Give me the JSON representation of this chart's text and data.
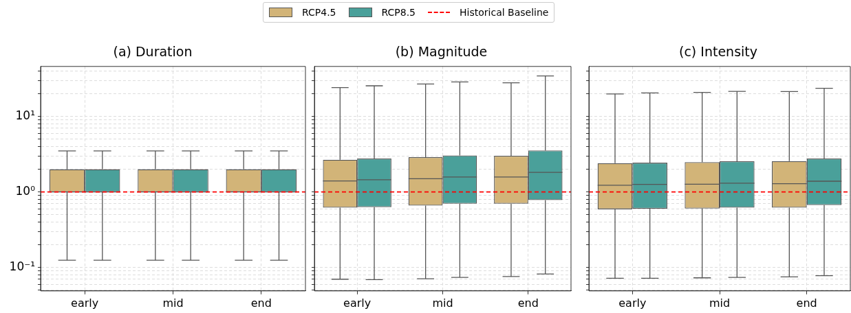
{
  "chart_data": [
    {
      "type": "box",
      "title": "(a) Duration",
      "categories": [
        "early",
        "mid",
        "end"
      ],
      "log": "y",
      "grid": true,
      "legend": "top",
      "ylim": [
        0.049,
        46
      ],
      "yticks": [
        {
          "value": 0.05,
          "label": null
        },
        {
          "value": 0.06,
          "label": null
        },
        {
          "value": 0.07,
          "label": null
        },
        {
          "value": 0.08,
          "label": null
        },
        {
          "value": 0.09,
          "label": null
        },
        {
          "value": 0.1,
          "label": "10⁻¹"
        },
        {
          "value": 0.2,
          "label": null
        },
        {
          "value": 0.3,
          "label": null
        },
        {
          "value": 0.4,
          "label": null
        },
        {
          "value": 0.5,
          "label": null
        },
        {
          "value": 0.6,
          "label": null
        },
        {
          "value": 0.7,
          "label": null
        },
        {
          "value": 0.8,
          "label": null
        },
        {
          "value": 0.9,
          "label": null
        },
        {
          "value": 1,
          "label": "10⁰"
        },
        {
          "value": 2,
          "label": null
        },
        {
          "value": 3,
          "label": null
        },
        {
          "value": 4,
          "label": null
        },
        {
          "value": 5,
          "label": null
        },
        {
          "value": 6,
          "label": null
        },
        {
          "value": 7,
          "label": null
        },
        {
          "value": 8,
          "label": null
        },
        {
          "value": 9,
          "label": null
        },
        {
          "value": 10,
          "label": "10¹"
        },
        {
          "value": 20,
          "label": null
        },
        {
          "value": 30,
          "label": null
        },
        {
          "value": 40,
          "label": null
        }
      ],
      "ref_lines": [
        {
          "axis": "y",
          "value": 1,
          "label": "Historical Baseline",
          "color": "#ff0000",
          "line_style": "dashed"
        }
      ],
      "series": [
        {
          "name": "RCP4.5",
          "color": "#d2b478",
          "boxes": [
            {
              "low": 0.125,
              "q1": 1,
              "median": 1,
              "q3": 2,
              "high": 3.5
            },
            {
              "low": 0.125,
              "q1": 1,
              "median": 1,
              "q3": 2,
              "high": 3.5
            },
            {
              "low": 0.125,
              "q1": 1,
              "median": 1,
              "q3": 2,
              "high": 3.5
            }
          ]
        },
        {
          "name": "RCP8.5",
          "color": "#4aa09a",
          "boxes": [
            {
              "low": 0.125,
              "q1": 1,
              "median": 1,
              "q3": 2,
              "high": 3.5
            },
            {
              "low": 0.125,
              "q1": 1,
              "median": 1,
              "q3": 2,
              "high": 3.5
            },
            {
              "low": 0.125,
              "q1": 1,
              "median": 1,
              "q3": 2,
              "high": 3.5
            }
          ]
        }
      ]
    },
    {
      "type": "box",
      "title": "(b) Magnitude",
      "categories": [
        "early",
        "mid",
        "end"
      ],
      "log": "y",
      "grid": true,
      "tick_labels": "x",
      "ylim": [
        0.049,
        46
      ],
      "yticks": [
        0.05,
        0.06,
        0.07,
        0.08,
        0.09,
        0.1,
        0.2,
        0.3,
        0.4,
        0.5,
        0.6,
        0.7,
        0.8,
        0.9,
        1,
        2,
        3,
        4,
        5,
        6,
        7,
        8,
        9,
        10,
        20,
        30,
        40
      ],
      "ref_lines": [
        {
          "axis": "y",
          "value": 1,
          "color": "#ff0000",
          "line_style": "dashed"
        }
      ],
      "series": [
        {
          "color": "#d2b478",
          "boxes": [
            {
              "low": 0.07,
              "q1": 0.62,
              "median": 1.4,
              "q3": 2.67,
              "high": 24.1
            },
            {
              "low": 0.071,
              "q1": 0.66,
              "median": 1.5,
              "q3": 2.89,
              "high": 26.9
            },
            {
              "low": 0.076,
              "q1": 0.7,
              "median": 1.58,
              "q3": 3.01,
              "high": 27.9
            }
          ]
        },
        {
          "color": "#4aa09a",
          "boxes": [
            {
              "low": 0.069,
              "q1": 0.63,
              "median": 1.45,
              "q3": 2.77,
              "high": 25.5
            },
            {
              "low": 0.074,
              "q1": 0.7,
              "median": 1.58,
              "q3": 3.05,
              "high": 28.7
            },
            {
              "low": 0.082,
              "q1": 0.78,
              "median": 1.82,
              "q3": 3.54,
              "high": 34.4
            }
          ]
        }
      ]
    },
    {
      "type": "box",
      "title": "(c) Intensity",
      "categories": [
        "early",
        "mid",
        "end"
      ],
      "log": "y",
      "grid": true,
      "tick_labels": "x",
      "ylim": [
        0.049,
        46
      ],
      "yticks": [
        0.05,
        0.06,
        0.07,
        0.08,
        0.09,
        0.1,
        0.2,
        0.3,
        0.4,
        0.5,
        0.6,
        0.7,
        0.8,
        0.9,
        1,
        2,
        3,
        4,
        5,
        6,
        7,
        8,
        9,
        10,
        20,
        30,
        40
      ],
      "ref_lines": [
        {
          "axis": "y",
          "value": 1,
          "color": "#ff0000",
          "line_style": "dashed"
        }
      ],
      "series": [
        {
          "color": "#d2b478",
          "boxes": [
            {
              "low": 0.072,
              "q1": 0.59,
              "median": 1.23,
              "q3": 2.41,
              "high": 19.9
            },
            {
              "low": 0.073,
              "q1": 0.605,
              "median": 1.27,
              "q3": 2.49,
              "high": 20.8
            },
            {
              "low": 0.075,
              "q1": 0.62,
              "median": 1.29,
              "q3": 2.56,
              "high": 21.4
            }
          ]
        },
        {
          "color": "#4aa09a",
          "boxes": [
            {
              "low": 0.072,
              "q1": 0.6,
              "median": 1.26,
              "q3": 2.44,
              "high": 20.5
            },
            {
              "low": 0.074,
              "q1": 0.62,
              "median": 1.31,
              "q3": 2.55,
              "high": 21.5
            },
            {
              "low": 0.078,
              "q1": 0.67,
              "median": 1.39,
              "q3": 2.77,
              "high": 23.6
            }
          ]
        }
      ]
    }
  ]
}
